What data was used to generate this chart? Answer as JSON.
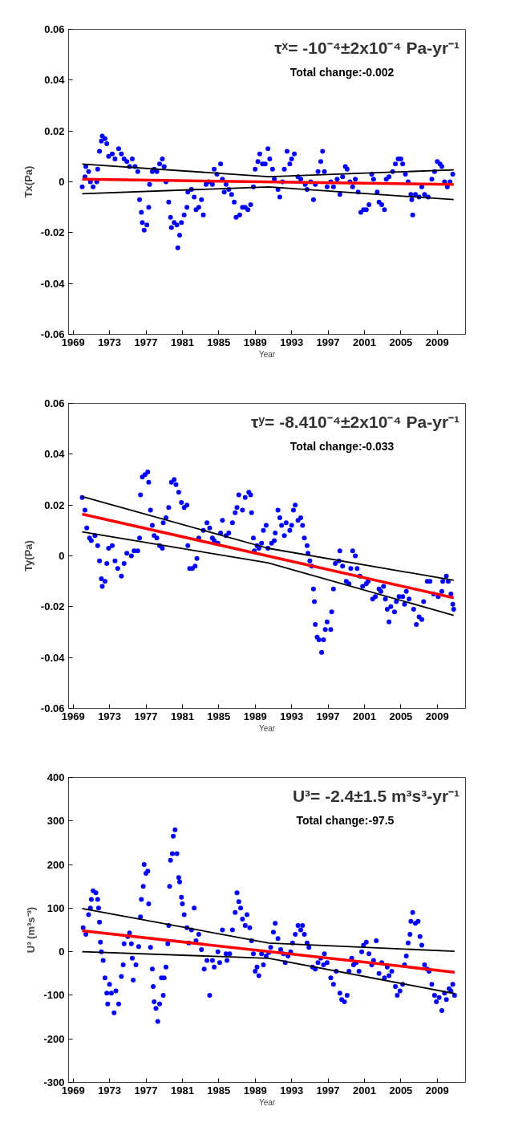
{
  "chart_data": [
    {
      "type": "scatter",
      "xlabel": "Year",
      "ylabel": "Tx(Pa)",
      "annotations": [
        "τˣ= -10⁻⁴±2x10⁻⁴ Pa-yr⁻¹",
        "Total change:-0.002"
      ],
      "xlim": [
        1968.5,
        2012.1
      ],
      "ylim": [
        -0.06,
        0.06
      ],
      "xticks": [
        1969,
        1973,
        1977,
        1981,
        1985,
        1989,
        1993,
        1997,
        2001,
        2005,
        2009
      ],
      "yticks": [
        -0.06,
        -0.04,
        -0.02,
        0,
        0.02,
        0.04,
        0.06
      ],
      "series": [
        {
          "marker": "circle",
          "color": "#0000ff",
          "x": [
            1970.0,
            1970.3,
            1970.4,
            1970.7,
            1970.9,
            1971.2,
            1971.6,
            1971.7,
            1971.9,
            1972.1,
            1972.2,
            1972.5,
            1972.7,
            1972.9,
            1973.3,
            1973.6,
            1974.0,
            1974.3,
            1974.6,
            1974.9,
            1975.2,
            1975.5,
            1975.8,
            1976.1,
            1976.3,
            1976.5,
            1976.6,
            1976.8,
            1977.1,
            1977.3,
            1977.4,
            1977.7,
            1977.9,
            1978.2,
            1978.5,
            1978.8,
            1979.0,
            1979.2,
            1979.5,
            1979.7,
            1979.8,
            1980.1,
            1980.4,
            1980.5,
            1980.7,
            1980.9,
            1981.2,
            1981.5,
            1981.6,
            1982.0,
            1982.3,
            1982.5,
            1982.8,
            1983.1,
            1983.3,
            1983.6,
            1983.9,
            1984.3,
            1984.5,
            1984.8,
            1985.2,
            1985.4,
            1985.6,
            1985.8,
            1986.1,
            1986.4,
            1986.7,
            1986.9,
            1987.3,
            1987.6,
            1987.9,
            1988.2,
            1988.5,
            1988.8,
            1989.0,
            1989.3,
            1989.5,
            1989.8,
            1990.1,
            1990.4,
            1990.6,
            1990.9,
            1991.1,
            1991.5,
            1991.7,
            1992.0,
            1992.2,
            1992.5,
            1992.8,
            1993.0,
            1993.3,
            1993.7,
            1994.0,
            1994.5,
            1994.7,
            1995.1,
            1995.4,
            1995.6,
            1995.9,
            1996.2,
            1996.4,
            1996.6,
            1996.9,
            1997.3,
            1997.6,
            1998.0,
            1998.3,
            1998.6,
            1998.9,
            1999.1,
            1999.4,
            1999.7,
            2000.0,
            2000.3,
            2000.6,
            2000.9,
            2001.2,
            2001.5,
            2001.8,
            2002.0,
            2002.4,
            2002.6,
            2002.9,
            2003.2,
            2003.4,
            2003.7,
            2004.1,
            2004.4,
            2004.7,
            2005.0,
            2005.2,
            2005.5,
            2005.8,
            2006.1,
            2006.2,
            2006.3,
            2006.6,
            2007.0,
            2007.3,
            2007.6,
            2008.0,
            2008.4,
            2008.7,
            2009.0,
            2009.3,
            2009.5,
            2009.8,
            2010.1,
            2010.4,
            2010.7
          ],
          "values": [
            -0.002,
            0.002,
            0.006,
            0.004,
            0.0,
            -0.002,
            0.0,
            0.005,
            0.012,
            0.016,
            0.018,
            0.017,
            0.015,
            0.01,
            0.011,
            0.009,
            0.013,
            0.011,
            0.009,
            0.008,
            0.006,
            0.009,
            0.006,
            0.004,
            -0.007,
            -0.012,
            -0.016,
            -0.019,
            -0.017,
            -0.01,
            -0.001,
            0.004,
            0.005,
            0.004,
            0.007,
            0.009,
            0.006,
            0.0,
            -0.008,
            -0.014,
            -0.018,
            -0.016,
            -0.017,
            -0.026,
            -0.021,
            -0.016,
            -0.013,
            -0.01,
            -0.004,
            -0.003,
            -0.006,
            -0.011,
            -0.01,
            -0.007,
            -0.013,
            -0.001,
            0.0,
            -0.001,
            0.005,
            0.003,
            0.007,
            0.001,
            -0.004,
            -0.001,
            -0.003,
            -0.005,
            -0.008,
            -0.014,
            -0.013,
            -0.01,
            -0.01,
            -0.011,
            -0.009,
            -0.002,
            0.005,
            0.008,
            0.011,
            0.007,
            0.007,
            0.013,
            0.009,
            0.005,
            0.001,
            -0.003,
            -0.006,
            0.0,
            0.005,
            0.012,
            0.007,
            0.009,
            0.011,
            0.002,
            0.001,
            -0.001,
            -0.003,
            0.0,
            -0.007,
            -0.001,
            0.004,
            0.008,
            0.012,
            0.004,
            -0.002,
            0.0,
            -0.002,
            0.001,
            -0.005,
            0.002,
            0.006,
            0.005,
            0.0,
            -0.002,
            0.001,
            -0.004,
            -0.012,
            -0.011,
            -0.011,
            -0.009,
            0.003,
            0.001,
            -0.004,
            -0.008,
            -0.009,
            -0.011,
            0.001,
            0.002,
            0.004,
            0.007,
            0.009,
            0.009,
            0.007,
            0.003,
            0.0,
            -0.005,
            -0.007,
            -0.013,
            -0.005,
            -0.006,
            -0.002,
            -0.005,
            -0.006,
            0.001,
            0.004,
            0.008,
            0.007,
            0.006,
            0.0,
            -0.002,
            0.0,
            0.003
          ]
        },
        {
          "type": "line",
          "color": "#000000",
          "x": [
            1970.0,
            1990.5,
            2010.8
          ],
          "values": [
            0.007,
            0.002,
            0.0047
          ]
        },
        {
          "type": "line",
          "color": "#000000",
          "x": [
            1970.0,
            1990.5,
            2010.8
          ],
          "values": [
            -0.0047,
            -0.002,
            -0.007
          ]
        },
        {
          "type": "line",
          "color": "#ff0000",
          "x": [
            1970.0,
            2010.8
          ],
          "values": [
            0.001,
            -0.001
          ]
        }
      ]
    },
    {
      "type": "scatter",
      "xlabel": "Year",
      "ylabel": "Ty(Pa)",
      "annotations": [
        "τʸ= -8.410⁻⁴±2x10⁻⁴ Pa-yr⁻¹",
        "Total change:-0.033"
      ],
      "xlim": [
        1968.5,
        2012.1
      ],
      "ylim": [
        -0.06,
        0.06
      ],
      "xticks": [
        1969,
        1973,
        1977,
        1981,
        1985,
        1989,
        1993,
        1997,
        2001,
        2005,
        2009
      ],
      "yticks": [
        -0.06,
        -0.04,
        -0.02,
        0,
        0.02,
        0.04,
        0.06
      ],
      "series": [
        {
          "marker": "circle",
          "color": "#0000ff",
          "x": [
            1970.0,
            1970.3,
            1970.5,
            1970.8,
            1971.0,
            1971.4,
            1971.7,
            1971.9,
            1972.1,
            1972.2,
            1972.5,
            1972.7,
            1972.9,
            1973.3,
            1973.6,
            1973.9,
            1974.3,
            1974.6,
            1974.9,
            1975.4,
            1975.7,
            1976.1,
            1976.3,
            1976.4,
            1976.6,
            1976.9,
            1977.2,
            1977.3,
            1977.5,
            1977.7,
            1977.9,
            1978.2,
            1978.5,
            1978.8,
            1978.9,
            1979.2,
            1979.5,
            1979.8,
            1980.1,
            1980.3,
            1980.6,
            1980.9,
            1981.2,
            1981.5,
            1981.6,
            1981.8,
            1982.1,
            1982.4,
            1982.6,
            1982.8,
            1983.3,
            1983.7,
            1984.0,
            1984.3,
            1984.5,
            1984.9,
            1985.2,
            1985.4,
            1985.8,
            1986.1,
            1986.5,
            1986.8,
            1987.0,
            1987.2,
            1987.6,
            1987.9,
            1988.3,
            1988.5,
            1988.6,
            1988.8,
            1988.9,
            1989.2,
            1989.4,
            1989.7,
            1989.9,
            1990.2,
            1990.4,
            1990.8,
            1991.1,
            1991.2,
            1991.5,
            1991.7,
            1991.9,
            1992.2,
            1992.4,
            1992.8,
            1993.0,
            1993.2,
            1993.4,
            1993.7,
            1994.0,
            1994.2,
            1994.4,
            1994.7,
            1994.8,
            1995.0,
            1995.2,
            1995.4,
            1995.5,
            1995.6,
            1995.8,
            1996.0,
            1996.3,
            1996.5,
            1996.7,
            1996.9,
            1997.3,
            1997.4,
            1997.6,
            1997.8,
            1998.2,
            1998.3,
            1998.6,
            1999.0,
            1999.3,
            1999.5,
            1999.7,
            2000.0,
            2000.2,
            2000.5,
            2000.8,
            2001.2,
            2001.4,
            2001.9,
            2002.2,
            2002.6,
            2002.8,
            2003.1,
            2003.3,
            2003.5,
            2003.7,
            2003.9,
            2004.3,
            2004.5,
            2004.8,
            2005.2,
            2005.4,
            2005.6,
            2005.9,
            2006.4,
            2006.7,
            2007.0,
            2007.3,
            2007.5,
            2007.9,
            2008.2,
            2008.6,
            2009.1,
            2009.5,
            2009.6,
            2010.0,
            2010.2,
            2010.5,
            2010.7,
            2010.8
          ],
          "values": [
            0.023,
            0.018,
            0.011,
            0.007,
            0.006,
            0.008,
            0.004,
            -0.002,
            -0.009,
            -0.012,
            -0.01,
            -0.003,
            0.003,
            0.004,
            -0.002,
            -0.005,
            -0.008,
            -0.003,
            0.001,
            0.0,
            0.002,
            0.002,
            0.007,
            0.024,
            0.031,
            0.032,
            0.033,
            0.029,
            0.018,
            0.012,
            0.008,
            0.007,
            0.004,
            0.003,
            0.013,
            0.015,
            0.019,
            0.029,
            0.03,
            0.028,
            0.025,
            0.021,
            0.019,
            0.02,
            0.004,
            -0.005,
            -0.005,
            -0.004,
            -0.001,
            0.007,
            0.01,
            0.013,
            0.011,
            0.007,
            0.006,
            0.005,
            0.009,
            0.014,
            0.008,
            0.009,
            0.013,
            0.017,
            0.019,
            0.024,
            0.018,
            0.023,
            0.025,
            0.024,
            0.017,
            0.007,
            0.002,
            0.004,
            0.003,
            0.005,
            0.01,
            0.012,
            0.003,
            0.005,
            0.006,
            0.009,
            0.018,
            0.015,
            0.012,
            0.008,
            0.013,
            0.01,
            0.012,
            0.018,
            0.02,
            0.014,
            0.015,
            0.012,
            0.007,
            0.004,
            0.001,
            -0.002,
            -0.004,
            -0.013,
            -0.018,
            -0.027,
            -0.032,
            -0.033,
            -0.038,
            -0.033,
            -0.029,
            -0.026,
            -0.029,
            -0.022,
            -0.013,
            -0.003,
            -0.002,
            0.002,
            -0.004,
            -0.01,
            -0.011,
            -0.005,
            0.002,
            0.0,
            -0.005,
            -0.008,
            -0.012,
            -0.011,
            -0.01,
            -0.017,
            -0.016,
            -0.013,
            -0.014,
            -0.012,
            -0.017,
            -0.021,
            -0.026,
            -0.02,
            -0.022,
            -0.018,
            -0.016,
            -0.016,
            -0.019,
            -0.014,
            -0.017,
            -0.021,
            -0.027,
            -0.024,
            -0.025,
            -0.018,
            -0.01,
            -0.01,
            -0.015,
            -0.016,
            -0.014,
            -0.01,
            -0.008,
            -0.01,
            -0.015,
            -0.019,
            -0.021
          ]
        },
        {
          "type": "line",
          "color": "#000000",
          "x": [
            1970.0,
            1990.4,
            2010.8
          ],
          "values": [
            0.0233,
            0.003,
            -0.0096
          ]
        },
        {
          "type": "line",
          "color": "#000000",
          "x": [
            1970.0,
            1990.4,
            2010.8
          ],
          "values": [
            0.0094,
            -0.0027,
            -0.0234
          ]
        },
        {
          "type": "line",
          "color": "#ff0000",
          "x": [
            1970.0,
            2010.8
          ],
          "values": [
            0.0164,
            -0.0165
          ]
        }
      ]
    },
    {
      "type": "scatter",
      "xlabel": "Year",
      "ylabel": "U³ (m³s⁻³)",
      "annotations": [
        "U³= -2.4±1.5 m³s³-yr⁻¹",
        "Total change:-97.5"
      ],
      "xlim": [
        1968.5,
        2012.1
      ],
      "ylim": [
        -300,
        400
      ],
      "xticks": [
        1969,
        1973,
        1977,
        1981,
        1985,
        1989,
        1993,
        1997,
        2001,
        2005,
        2009
      ],
      "yticks": [
        -300,
        -200,
        -100,
        0,
        100,
        200,
        300,
        400
      ],
      "series": [
        {
          "marker": "circle",
          "color": "#0000ff",
          "x": [
            1970.1,
            1970.4,
            1970.7,
            1970.9,
            1971.0,
            1971.2,
            1971.5,
            1971.7,
            1971.8,
            1971.9,
            1972.0,
            1972.1,
            1972.3,
            1972.5,
            1972.7,
            1972.8,
            1973.0,
            1973.2,
            1973.5,
            1973.7,
            1974.0,
            1974.3,
            1974.5,
            1974.6,
            1975.0,
            1975.2,
            1975.4,
            1975.5,
            1975.6,
            1975.9,
            1976.2,
            1976.4,
            1976.5,
            1976.7,
            1976.8,
            1977.0,
            1977.2,
            1977.3,
            1977.5,
            1977.7,
            1977.8,
            1977.9,
            1978.1,
            1978.3,
            1978.5,
            1978.7,
            1978.9,
            1979.0,
            1979.2,
            1979.4,
            1979.5,
            1979.6,
            1979.7,
            1979.9,
            1980.0,
            1980.2,
            1980.4,
            1980.6,
            1980.7,
            1980.9,
            1981.0,
            1981.2,
            1981.5,
            1981.7,
            1982.0,
            1982.3,
            1982.5,
            1982.8,
            1983.1,
            1983.4,
            1983.7,
            1984.0,
            1984.3,
            1984.5,
            1984.9,
            1985.1,
            1985.4,
            1985.8,
            1985.9,
            1986.2,
            1986.5,
            1986.8,
            1987.0,
            1987.2,
            1987.4,
            1987.6,
            1987.9,
            1988.1,
            1988.4,
            1988.6,
            1988.8,
            1989.0,
            1989.2,
            1989.4,
            1989.7,
            1989.9,
            1990.2,
            1990.5,
            1990.7,
            1991.0,
            1991.2,
            1991.5,
            1991.8,
            1992.1,
            1992.3,
            1992.6,
            1992.9,
            1993.1,
            1993.4,
            1993.7,
            1994.0,
            1994.2,
            1994.4,
            1994.7,
            1994.9,
            1995.3,
            1995.6,
            1995.9,
            1996.2,
            1996.5,
            1996.6,
            1996.9,
            1997.3,
            1997.6,
            1997.9,
            1998.3,
            1998.5,
            1998.8,
            1999.1,
            1999.3,
            1999.6,
            1999.8,
            2000.1,
            2000.4,
            2000.7,
            2000.9,
            2001.2,
            2001.5,
            2001.8,
            2002.0,
            2002.3,
            2002.6,
            2002.9,
            2003.2,
            2003.5,
            2003.7,
            2004.0,
            2004.4,
            2004.6,
            2004.9,
            2005.2,
            2005.4,
            2005.6,
            2005.8,
            2006.0,
            2006.1,
            2006.3,
            2006.6,
            2006.9,
            2007.1,
            2007.3,
            2007.6,
            2007.9,
            2008.1,
            2008.4,
            2008.7,
            2008.9,
            2009.2,
            2009.5,
            2009.8,
            2010.0,
            2010.3,
            2010.5,
            2010.7,
            2010.9
          ],
          "values": [
            55,
            40,
            85,
            100,
            120,
            140,
            135,
            120,
            100,
            68,
            22,
            0,
            -20,
            -60,
            -95,
            -120,
            -75,
            -95,
            -140,
            -90,
            -120,
            -57,
            -30,
            18,
            35,
            43,
            18,
            -15,
            -65,
            -30,
            12,
            80,
            120,
            150,
            200,
            180,
            185,
            110,
            10,
            -40,
            -80,
            -115,
            -130,
            -160,
            -120,
            -60,
            -100,
            -60,
            -35,
            18,
            60,
            150,
            210,
            225,
            265,
            280,
            225,
            170,
            160,
            125,
            110,
            85,
            55,
            20,
            50,
            100,
            25,
            40,
            5,
            -40,
            -20,
            -100,
            -20,
            -35,
            0,
            -25,
            50,
            -5,
            -20,
            -5,
            50,
            90,
            135,
            115,
            100,
            75,
            60,
            85,
            55,
            25,
            -5,
            -45,
            -35,
            -55,
            -5,
            -30,
            -10,
            -2,
            10,
            45,
            65,
            30,
            5,
            -5,
            -25,
            -10,
            0,
            20,
            40,
            60,
            50,
            60,
            40,
            20,
            10,
            -35,
            -40,
            -25,
            -15,
            -30,
            -5,
            -25,
            -60,
            -75,
            -45,
            -95,
            -110,
            -115,
            -100,
            -45,
            -15,
            -30,
            -25,
            -45,
            0,
            15,
            22,
            -5,
            -30,
            -20,
            25,
            -50,
            -25,
            -60,
            -35,
            -55,
            -45,
            -80,
            -100,
            -90,
            -75,
            -30,
            -10,
            20,
            40,
            70,
            90,
            65,
            70,
            35,
            15,
            -30,
            -40,
            -45,
            -75,
            -100,
            -115,
            -105,
            -135,
            -95,
            -110,
            -85,
            -90,
            -75,
            -100
          ]
        },
        {
          "type": "line",
          "color": "#000000",
          "x": [
            1970.0,
            1990.5,
            2010.9
          ],
          "values": [
            99,
            20,
            1
          ]
        },
        {
          "type": "line",
          "color": "#000000",
          "x": [
            1970.0,
            1990.5,
            2010.9
          ],
          "values": [
            0,
            -15,
            -96
          ]
        },
        {
          "type": "line",
          "color": "#ff0000",
          "x": [
            1970.0,
            2010.9
          ],
          "values": [
            48,
            -47
          ]
        }
      ]
    }
  ]
}
